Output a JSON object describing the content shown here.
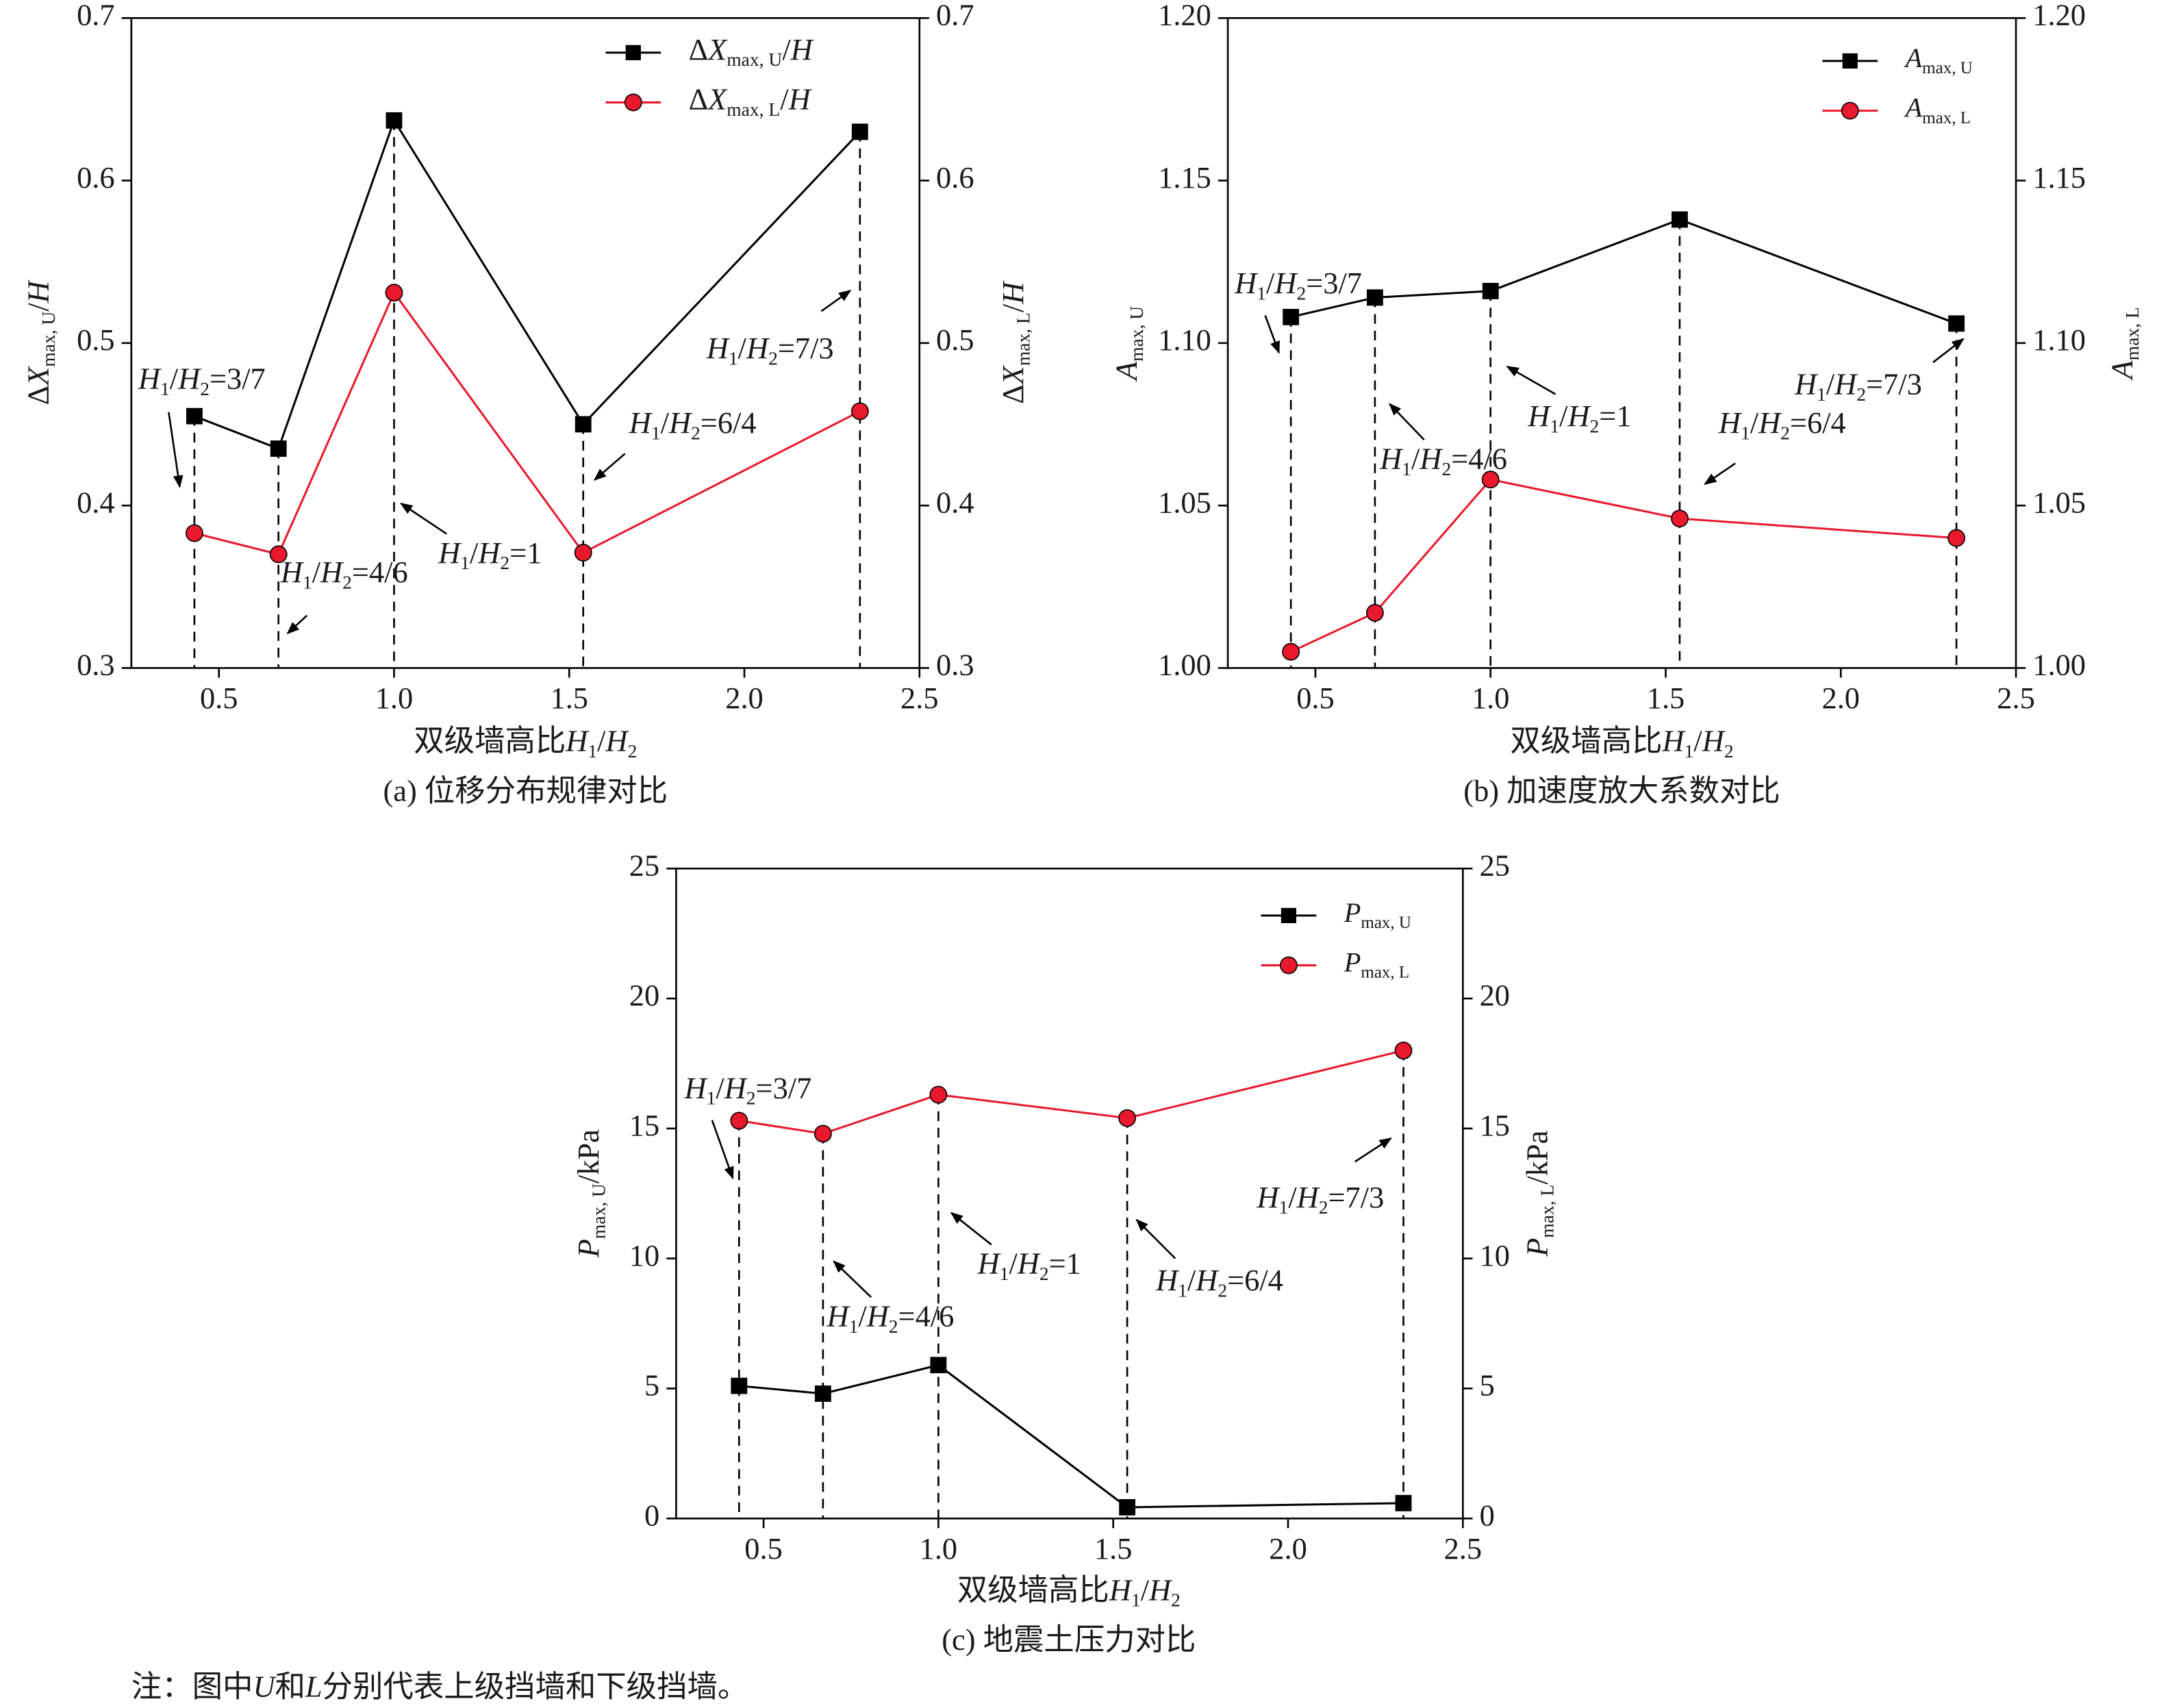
{
  "chart_data": [
    {
      "type": "line",
      "caption": "(a) 位移分布规律对比",
      "x_label": [
        {
          "t": "双级墙高比"
        },
        {
          "t": "H",
          "s": "i"
        },
        {
          "t": "1",
          "s": "sub"
        },
        {
          "t": "/"
        },
        {
          "t": "H",
          "s": "i"
        },
        {
          "t": "2",
          "s": "sub"
        }
      ],
      "y_label": [
        {
          "t": "Δ"
        },
        {
          "t": "X",
          "s": "i"
        },
        {
          "t": "max, U",
          "s": "sub"
        },
        {
          "t": "/"
        },
        {
          "t": "H",
          "s": "i"
        }
      ],
      "y2_label": [
        {
          "t": "Δ"
        },
        {
          "t": "X",
          "s": "i"
        },
        {
          "t": "max, L",
          "s": "sub"
        },
        {
          "t": "/"
        },
        {
          "t": "H",
          "s": "i"
        }
      ],
      "x": [
        0.43,
        0.67,
        1.0,
        1.54,
        2.33
      ],
      "xlim": [
        0.25,
        2.5
      ],
      "xticks": [
        0.5,
        {
          "value": 1,
          "label": "1.0"
        },
        1.5,
        {
          "value": 2,
          "label": "2.0"
        },
        2.5
      ],
      "ylim": [
        0.3,
        0.7
      ],
      "yticks": [
        0.3,
        0.4,
        0.5,
        0.6,
        0.7
      ],
      "y2lim": [
        0.3,
        0.7
      ],
      "y2ticks": [
        0.3,
        0.4,
        0.5,
        0.6,
        0.7
      ],
      "drop_lines": true,
      "series": [
        {
          "name": [
            {
              "t": "Δ"
            },
            {
              "t": "X",
              "s": "i"
            },
            {
              "t": "max, U",
              "s": "sub"
            },
            {
              "t": "/"
            },
            {
              "t": "H",
              "s": "i"
            }
          ],
          "color": "#000000",
          "marker": "square",
          "values": [
            0.455,
            0.435,
            0.637,
            0.45,
            0.63
          ]
        },
        {
          "name": [
            {
              "t": "Δ"
            },
            {
              "t": "X",
              "s": "i"
            },
            {
              "t": "max, L",
              "s": "sub"
            },
            {
              "t": "/"
            },
            {
              "t": "H",
              "s": "i"
            }
          ],
          "color": "#e8192c",
          "marker": "circle",
          "axis": "y2",
          "values": [
            0.383,
            0.37,
            0.531,
            0.371,
            0.458
          ]
        }
      ],
      "annotations": [
        [
          {
            "t": "H",
            "s": "i"
          },
          {
            "t": "1",
            "s": "sub"
          },
          {
            "t": "/"
          },
          {
            "t": "H",
            "s": "i"
          },
          {
            "t": "2",
            "s": "sub"
          },
          {
            "t": "=3/7"
          }
        ],
        [
          {
            "t": "H",
            "s": "i"
          },
          {
            "t": "1",
            "s": "sub"
          },
          {
            "t": "/"
          },
          {
            "t": "H",
            "s": "i"
          },
          {
            "t": "2",
            "s": "sub"
          },
          {
            "t": "=4/6"
          }
        ],
        [
          {
            "t": "H",
            "s": "i"
          },
          {
            "t": "1",
            "s": "sub"
          },
          {
            "t": "/"
          },
          {
            "t": "H",
            "s": "i"
          },
          {
            "t": "2",
            "s": "sub"
          },
          {
            "t": "=1"
          }
        ],
        [
          {
            "t": "H",
            "s": "i"
          },
          {
            "t": "1",
            "s": "sub"
          },
          {
            "t": "/"
          },
          {
            "t": "H",
            "s": "i"
          },
          {
            "t": "2",
            "s": "sub"
          },
          {
            "t": "=6/4"
          }
        ],
        [
          {
            "t": "H",
            "s": "i"
          },
          {
            "t": "1",
            "s": "sub"
          },
          {
            "t": "/"
          },
          {
            "t": "H",
            "s": "i"
          },
          {
            "t": "2",
            "s": "sub"
          },
          {
            "t": "=7/3"
          }
        ]
      ]
    },
    {
      "type": "line",
      "caption": "(b) 加速度放大系数对比",
      "x_label": [
        {
          "t": "双级墙高比"
        },
        {
          "t": "H",
          "s": "i"
        },
        {
          "t": "1",
          "s": "sub"
        },
        {
          "t": "/"
        },
        {
          "t": "H",
          "s": "i"
        },
        {
          "t": "2",
          "s": "sub"
        }
      ],
      "y_label": [
        {
          "t": "A",
          "s": "i"
        },
        {
          "t": "max, U",
          "s": "sub"
        }
      ],
      "y2_label": [
        {
          "t": "A",
          "s": "i"
        },
        {
          "t": "max, L",
          "s": "sub"
        }
      ],
      "x": [
        0.43,
        0.67,
        1.0,
        1.54,
        2.33
      ],
      "xlim": [
        0.25,
        2.5
      ],
      "xticks": [
        0.5,
        {
          "value": 1,
          "label": "1.0"
        },
        1.5,
        {
          "value": 2,
          "label": "2.0"
        },
        2.5
      ],
      "ylim": [
        1.0,
        1.2
      ],
      "yticks": [
        {
          "value": 1,
          "label": "1.00"
        },
        {
          "value": 1.05,
          "label": "1.05"
        },
        {
          "value": 1.1,
          "label": "1.10"
        },
        {
          "value": 1.15,
          "label": "1.15"
        },
        {
          "value": 1.2,
          "label": "1.20"
        }
      ],
      "y2lim": [
        1.0,
        1.2
      ],
      "y2ticks": [
        {
          "value": 1,
          "label": "1.00"
        },
        {
          "value": 1.05,
          "label": "1.05"
        },
        {
          "value": 1.1,
          "label": "1.10"
        },
        {
          "value": 1.15,
          "label": "1.15"
        },
        {
          "value": 1.2,
          "label": "1.20"
        }
      ],
      "drop_lines": true,
      "series": [
        {
          "name": [
            {
              "t": "A",
              "s": "i"
            },
            {
              "t": "max, U",
              "s": "sub"
            }
          ],
          "color": "#000000",
          "marker": "square",
          "values": [
            1.108,
            1.114,
            1.116,
            1.138,
            1.106
          ]
        },
        {
          "name": [
            {
              "t": "A",
              "s": "i"
            },
            {
              "t": "max, L",
              "s": "sub"
            }
          ],
          "color": "#e8192c",
          "marker": "circle",
          "axis": "y2",
          "values": [
            1.005,
            1.017,
            1.058,
            1.046,
            1.04
          ]
        }
      ],
      "annotations": [
        [
          {
            "t": "H",
            "s": "i"
          },
          {
            "t": "1",
            "s": "sub"
          },
          {
            "t": "/"
          },
          {
            "t": "H",
            "s": "i"
          },
          {
            "t": "2",
            "s": "sub"
          },
          {
            "t": "=3/7"
          }
        ],
        [
          {
            "t": "H",
            "s": "i"
          },
          {
            "t": "1",
            "s": "sub"
          },
          {
            "t": "/"
          },
          {
            "t": "H",
            "s": "i"
          },
          {
            "t": "2",
            "s": "sub"
          },
          {
            "t": "=4/6"
          }
        ],
        [
          {
            "t": "H",
            "s": "i"
          },
          {
            "t": "1",
            "s": "sub"
          },
          {
            "t": "/"
          },
          {
            "t": "H",
            "s": "i"
          },
          {
            "t": "2",
            "s": "sub"
          },
          {
            "t": "=1"
          }
        ],
        [
          {
            "t": "H",
            "s": "i"
          },
          {
            "t": "1",
            "s": "sub"
          },
          {
            "t": "/"
          },
          {
            "t": "H",
            "s": "i"
          },
          {
            "t": "2",
            "s": "sub"
          },
          {
            "t": "=6/4"
          }
        ],
        [
          {
            "t": "H",
            "s": "i"
          },
          {
            "t": "1",
            "s": "sub"
          },
          {
            "t": "/"
          },
          {
            "t": "H",
            "s": "i"
          },
          {
            "t": "2",
            "s": "sub"
          },
          {
            "t": "=7/3"
          }
        ]
      ]
    },
    {
      "type": "line",
      "caption": "(c) 地震土压力对比",
      "x_label": [
        {
          "t": "双级墙高比"
        },
        {
          "t": "H",
          "s": "i"
        },
        {
          "t": "1",
          "s": "sub"
        },
        {
          "t": "/"
        },
        {
          "t": "H",
          "s": "i"
        },
        {
          "t": "2",
          "s": "sub"
        }
      ],
      "y_label": [
        {
          "t": "P",
          "s": "i"
        },
        {
          "t": "max, U",
          "s": "sub"
        },
        {
          "t": "/kPa"
        }
      ],
      "y2_label": [
        {
          "t": "P",
          "s": "i"
        },
        {
          "t": "max, L",
          "s": "sub"
        },
        {
          "t": "/kPa"
        }
      ],
      "x": [
        0.43,
        0.67,
        1.0,
        1.54,
        2.33
      ],
      "xlim": [
        0.25,
        2.5
      ],
      "xticks": [
        0.5,
        {
          "value": 1,
          "label": "1.0"
        },
        1.5,
        {
          "value": 2,
          "label": "2.0"
        },
        2.5
      ],
      "ylim": [
        0,
        25
      ],
      "yticks": [
        0,
        5,
        10,
        15,
        20,
        25
      ],
      "y2lim": [
        0,
        25
      ],
      "y2ticks": [
        0,
        5,
        10,
        15,
        20,
        25
      ],
      "drop_lines": true,
      "series": [
        {
          "name": [
            {
              "t": "P",
              "s": "i"
            },
            {
              "t": "max, U",
              "s": "sub"
            }
          ],
          "color": "#000000",
          "marker": "square",
          "values": [
            5.1,
            4.8,
            5.9,
            0.43,
            0.59
          ]
        },
        {
          "name": [
            {
              "t": "P",
              "s": "i"
            },
            {
              "t": "max, L",
              "s": "sub"
            }
          ],
          "color": "#e8192c",
          "marker": "circle",
          "axis": "y2",
          "values": [
            15.3,
            14.8,
            16.3,
            15.4,
            18.0
          ]
        }
      ],
      "annotations": [
        [
          {
            "t": "H",
            "s": "i"
          },
          {
            "t": "1",
            "s": "sub"
          },
          {
            "t": "/"
          },
          {
            "t": "H",
            "s": "i"
          },
          {
            "t": "2",
            "s": "sub"
          },
          {
            "t": "=3/7"
          }
        ],
        [
          {
            "t": "H",
            "s": "i"
          },
          {
            "t": "1",
            "s": "sub"
          },
          {
            "t": "/"
          },
          {
            "t": "H",
            "s": "i"
          },
          {
            "t": "2",
            "s": "sub"
          },
          {
            "t": "=4/6"
          }
        ],
        [
          {
            "t": "H",
            "s": "i"
          },
          {
            "t": "1",
            "s": "sub"
          },
          {
            "t": "/"
          },
          {
            "t": "H",
            "s": "i"
          },
          {
            "t": "2",
            "s": "sub"
          },
          {
            "t": "=1"
          }
        ],
        [
          {
            "t": "H",
            "s": "i"
          },
          {
            "t": "1",
            "s": "sub"
          },
          {
            "t": "/"
          },
          {
            "t": "H",
            "s": "i"
          },
          {
            "t": "2",
            "s": "sub"
          },
          {
            "t": "=6/4"
          }
        ],
        [
          {
            "t": "H",
            "s": "i"
          },
          {
            "t": "1",
            "s": "sub"
          },
          {
            "t": "/"
          },
          {
            "t": "H",
            "s": "i"
          },
          {
            "t": "2",
            "s": "sub"
          },
          {
            "t": "=7/3"
          }
        ]
      ]
    }
  ],
  "note": [
    {
      "t": "注：图中"
    },
    {
      "t": "U",
      "s": "i"
    },
    {
      "t": "和"
    },
    {
      "t": "L",
      "s": "i"
    },
    {
      "t": "分别代表上级挡墙和下级挡墙。"
    }
  ]
}
